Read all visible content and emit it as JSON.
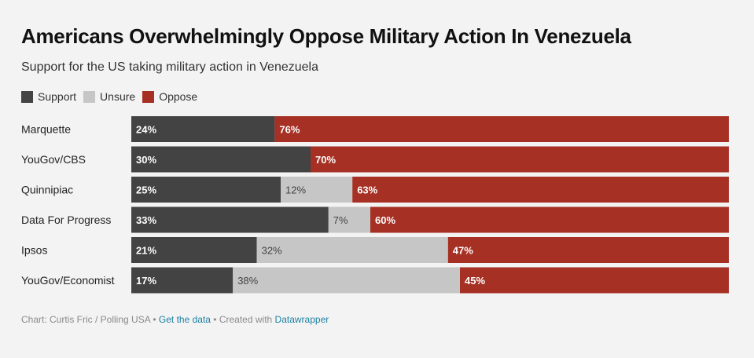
{
  "title": "Americans Overwhelmingly Oppose Military Action In Venezuela",
  "subtitle": "Support for the US taking military action in Venezuela",
  "legend": [
    {
      "label": "Support",
      "color": "#434343"
    },
    {
      "label": "Unsure",
      "color": "#c6c6c6"
    },
    {
      "label": "Oppose",
      "color": "#a63024"
    }
  ],
  "chart_data": {
    "type": "bar",
    "orientation": "horizontal",
    "stacked": true,
    "categories": [
      "Marquette",
      "YouGov/CBS",
      "Quinnipiac",
      "Data For Progress",
      "Ipsos",
      "YouGov/Economist"
    ],
    "series": [
      {
        "name": "Support",
        "color": "#434343",
        "values": [
          24,
          30,
          25,
          33,
          21,
          17
        ],
        "labels": [
          "24%",
          "30%",
          "25%",
          "33%",
          "21%",
          "17%"
        ]
      },
      {
        "name": "Unsure",
        "color": "#c6c6c6",
        "values": [
          0,
          0,
          12,
          7,
          32,
          38
        ],
        "labels": [
          "",
          "",
          "12%",
          "7%",
          "32%",
          "38%"
        ]
      },
      {
        "name": "Oppose",
        "color": "#a63024",
        "values": [
          76,
          70,
          63,
          60,
          47,
          45
        ],
        "labels": [
          "76%",
          "70%",
          "63%",
          "60%",
          "47%",
          "45%"
        ]
      }
    ],
    "xlim": [
      0,
      100
    ],
    "legend_position": "top-left"
  },
  "footer": {
    "source": "Chart: Curtis Fric / Polling USA",
    "sep1": " • ",
    "get_data": "Get the data",
    "sep2": " • Created with ",
    "datawrapper": "Datawrapper"
  }
}
